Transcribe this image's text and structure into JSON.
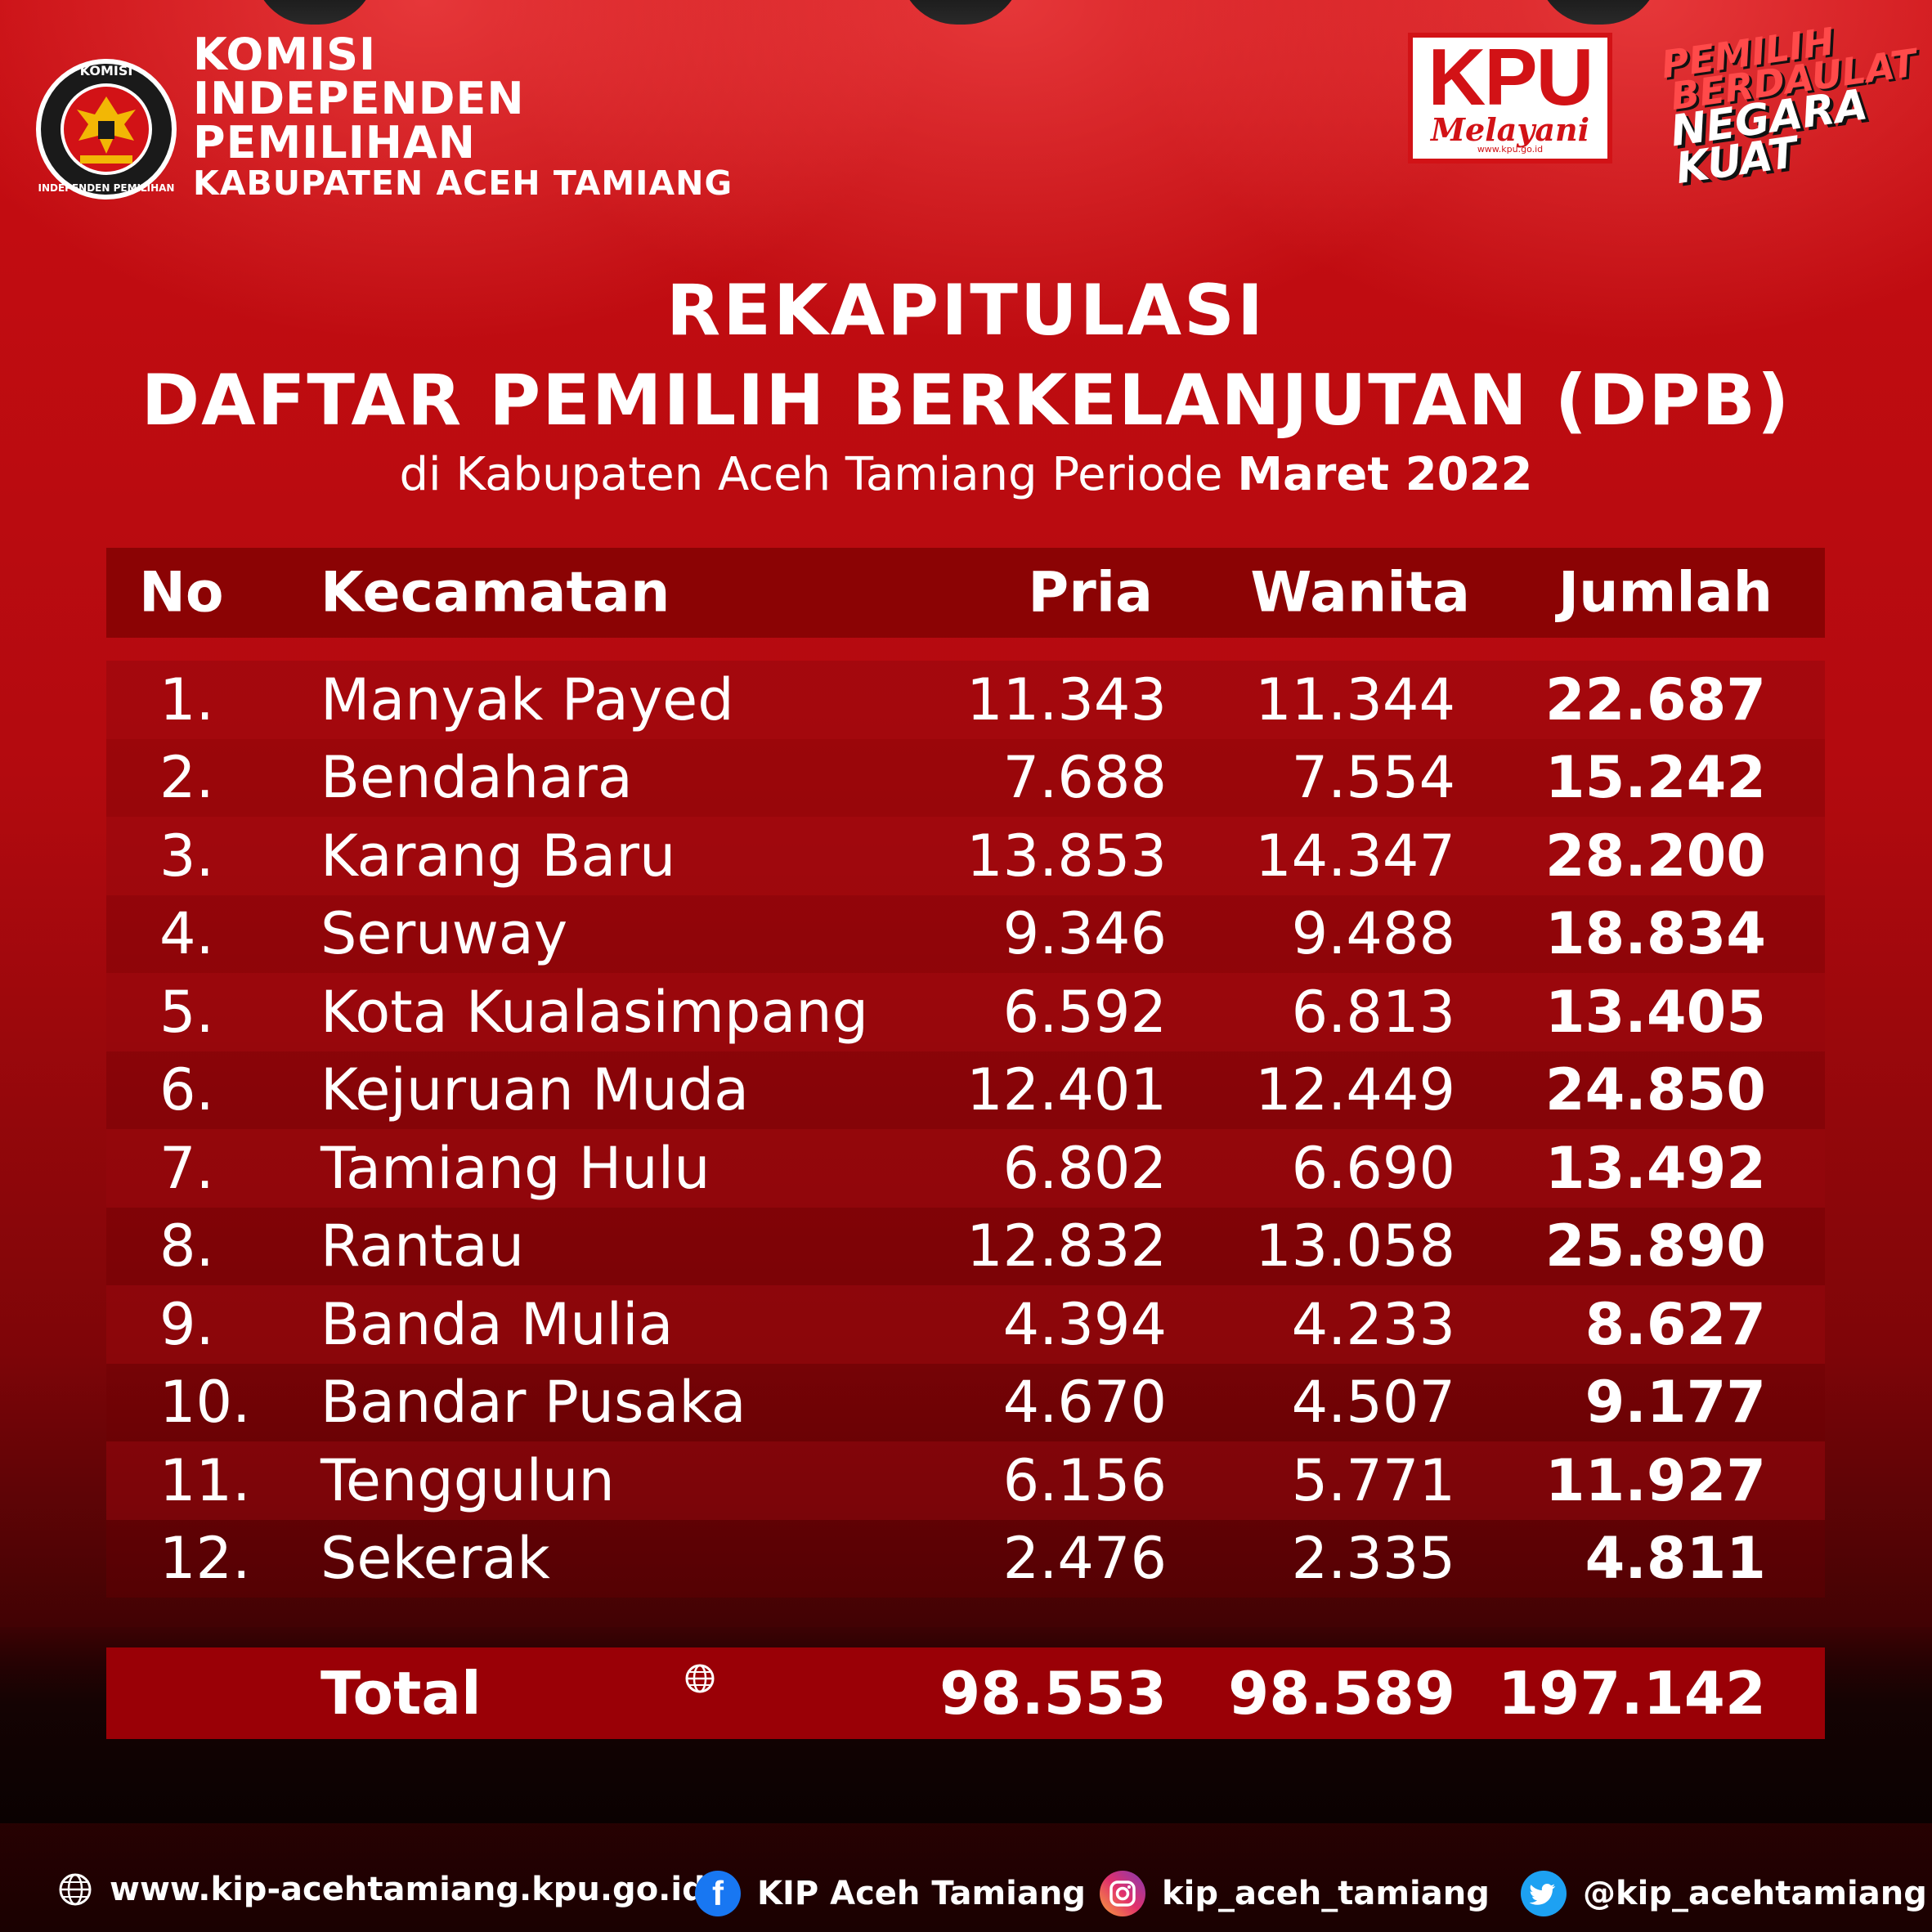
{
  "header": {
    "emblem_top_text": "KOMISI",
    "emblem_bottom_text": "INDEPENDEN PEMILIHAN",
    "org_lines": [
      "KOMISI",
      "INDEPENDEN",
      "PEMILIHAN"
    ],
    "org_sub": "KABUPATEN ACEH TAMIANG",
    "kpu_badge": {
      "big": "KPU",
      "script": "Melayani",
      "url": "www.kpu.go.id"
    },
    "slogan": [
      "PEMILIH",
      "BERDAULAT",
      "NEGARA",
      "KUAT"
    ]
  },
  "title": {
    "line1": "REKAPITULASI",
    "line2": "DAFTAR PEMILIH BERKELANJUTAN (DPB)",
    "subtitle_prefix": "di Kabupaten Aceh Tamiang Periode",
    "subtitle_period": "Maret 2022"
  },
  "table": {
    "headers": {
      "no": "No",
      "kecamatan": "Kecamatan",
      "pria": "Pria",
      "wanita": "Wanita",
      "jumlah": "Jumlah"
    },
    "rows": [
      {
        "no": "1.",
        "kecamatan": "Manyak Payed",
        "pria": "11.343",
        "wanita": "11.344",
        "jumlah": "22.687"
      },
      {
        "no": "2.",
        "kecamatan": "Bendahara",
        "pria": "7.688",
        "wanita": "7.554",
        "jumlah": "15.242"
      },
      {
        "no": "3.",
        "kecamatan": "Karang Baru",
        "pria": "13.853",
        "wanita": "14.347",
        "jumlah": "28.200"
      },
      {
        "no": "4.",
        "kecamatan": "Seruway",
        "pria": "9.346",
        "wanita": "9.488",
        "jumlah": "18.834"
      },
      {
        "no": "5.",
        "kecamatan": "Kota Kualasimpang",
        "pria": "6.592",
        "wanita": "6.813",
        "jumlah": "13.405"
      },
      {
        "no": "6.",
        "kecamatan": "Kejuruan Muda",
        "pria": "12.401",
        "wanita": "12.449",
        "jumlah": "24.850"
      },
      {
        "no": "7.",
        "kecamatan": "Tamiang Hulu",
        "pria": "6.802",
        "wanita": "6.690",
        "jumlah": "13.492"
      },
      {
        "no": "8.",
        "kecamatan": "Rantau",
        "pria": "12.832",
        "wanita": "13.058",
        "jumlah": "25.890"
      },
      {
        "no": "9.",
        "kecamatan": "Banda Mulia",
        "pria": "4.394",
        "wanita": "4.233",
        "jumlah": "8.627"
      },
      {
        "no": "10.",
        "kecamatan": "Bandar Pusaka",
        "pria": "4.670",
        "wanita": "4.507",
        "jumlah": "9.177"
      },
      {
        "no": "11.",
        "kecamatan": "Tenggulun",
        "pria": "6.156",
        "wanita": "5.771",
        "jumlah": "11.927"
      },
      {
        "no": "12.",
        "kecamatan": "Sekerak",
        "pria": "2.476",
        "wanita": "2.335",
        "jumlah": "4.811"
      }
    ],
    "total": {
      "label": "Total",
      "pria": "98.553",
      "wanita": "98.589",
      "jumlah": "197.142"
    }
  },
  "footer": {
    "website": "www.kip-acehtamiang.kpu.go.id",
    "facebook": "KIP Aceh Tamiang",
    "instagram": "kip_aceh_tamiang",
    "twitter": "@kip_acehtamiang"
  },
  "colors": {
    "background": "#b30a0f",
    "accent": "#d21216",
    "total_bar": "#9a0006"
  }
}
